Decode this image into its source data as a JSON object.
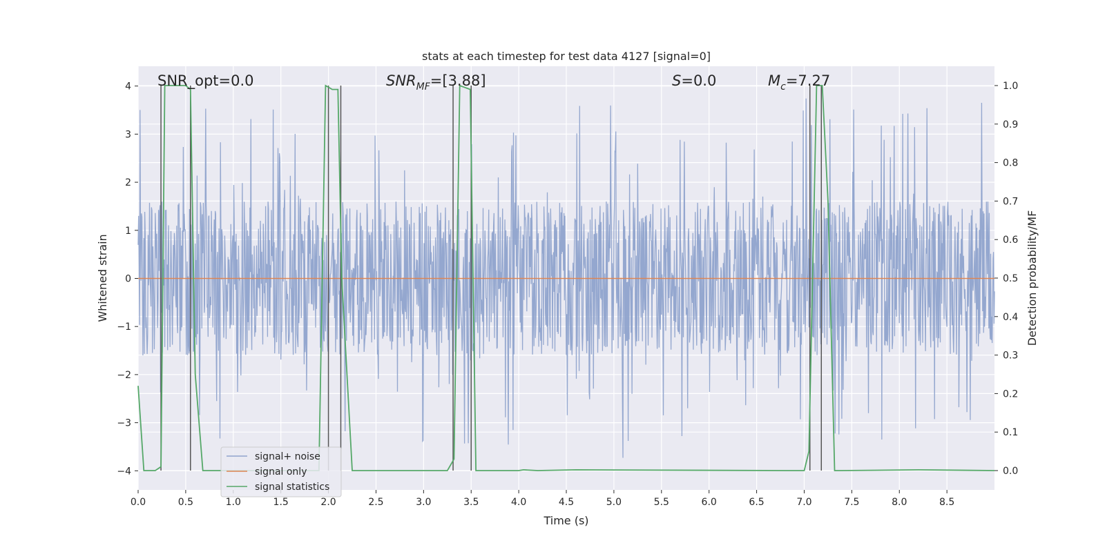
{
  "chart_data": {
    "type": "line",
    "title": "stats at each timestep for test data 4127 [signal=0]",
    "xlabel": "Time (s)",
    "ylabel": "Whitened strain",
    "y2label": "Detection probability/MF",
    "xlim": [
      0,
      9.0
    ],
    "ylim": [
      -4.4,
      4.4
    ],
    "y2lim": [
      -0.05,
      1.05
    ],
    "grid": true,
    "legend_position": "lower-left",
    "x_ticks": [
      "0.0",
      "0.5",
      "1.0",
      "1.5",
      "2.0",
      "2.5",
      "3.0",
      "3.5",
      "4.0",
      "4.5",
      "5.0",
      "5.5",
      "6.0",
      "6.5",
      "7.0",
      "7.5",
      "8.0",
      "8.5"
    ],
    "y_ticks": [
      "−4",
      "−3",
      "−2",
      "−1",
      "0",
      "1",
      "2",
      "3",
      "4"
    ],
    "y2_ticks": [
      "0.0",
      "0.1",
      "0.2",
      "0.3",
      "0.4",
      "0.5",
      "0.6",
      "0.7",
      "0.8",
      "0.9",
      "1.0"
    ],
    "annotations": {
      "snr_opt": "SNR_opt=0.0",
      "snr_mf_base": "SNR",
      "snr_mf_sub": "MF",
      "snr_mf_value": "=[3.88]",
      "s_symbol": "S",
      "s_value": "=0.0",
      "mc_base": "M",
      "mc_sub": "c",
      "mc_value": "=7.27"
    },
    "series": [
      {
        "name": "signal+ noise",
        "color": "#8fa3cc",
        "axis": "left",
        "summary": "whitened noise, approx. within ±1.6 with spikes up to ±4"
      },
      {
        "name": "signal only",
        "color": "#dd8452",
        "axis": "left",
        "x": [
          0,
          9.0
        ],
        "y": [
          0,
          0
        ]
      },
      {
        "name": "signal statistics",
        "color": "#55a868",
        "axis": "right",
        "x": [
          0.0,
          0.06,
          0.18,
          0.24,
          0.28,
          0.32,
          0.5,
          0.55,
          0.6,
          0.68,
          0.75,
          1.9,
          1.97,
          2.04,
          2.1,
          2.14,
          2.25,
          2.32,
          3.25,
          3.32,
          3.38,
          3.49,
          3.55,
          4.0,
          4.05,
          4.2,
          4.6,
          6.8,
          7.0,
          7.05,
          7.13,
          7.19,
          7.25,
          7.32,
          7.38,
          8.2,
          9.0
        ],
        "y": [
          0.22,
          0.0,
          0.0,
          0.01,
          1.0,
          1.0,
          1.0,
          0.99,
          0.25,
          0.0,
          0.0,
          0.0,
          1.0,
          0.99,
          0.99,
          0.5,
          0.0,
          0.0,
          0.0,
          0.03,
          1.0,
          0.99,
          0.0,
          0.0,
          0.002,
          0.0,
          0.002,
          0.0,
          0.0,
          0.05,
          1.0,
          1.0,
          0.7,
          0.0,
          0.0,
          0.002,
          0.0
        ]
      }
    ],
    "vertical_markers": [
      {
        "x": 0.24,
        "y_from": 0.0,
        "y_to": 1.0
      },
      {
        "x": 0.55,
        "y_from": 0.0,
        "y_to": 1.0
      },
      {
        "x": 2.0,
        "y_from": 0.0,
        "y_to": 1.0
      },
      {
        "x": 2.13,
        "y_from": 0.0,
        "y_to": 1.0
      },
      {
        "x": 3.31,
        "y_from": 0.0,
        "y_to": 1.0
      },
      {
        "x": 3.5,
        "y_from": 0.0,
        "y_to": 1.0
      },
      {
        "x": 7.06,
        "y_from": 0.0,
        "y_to": 1.0
      },
      {
        "x": 7.18,
        "y_from": 0.0,
        "y_to": 1.0
      }
    ]
  }
}
